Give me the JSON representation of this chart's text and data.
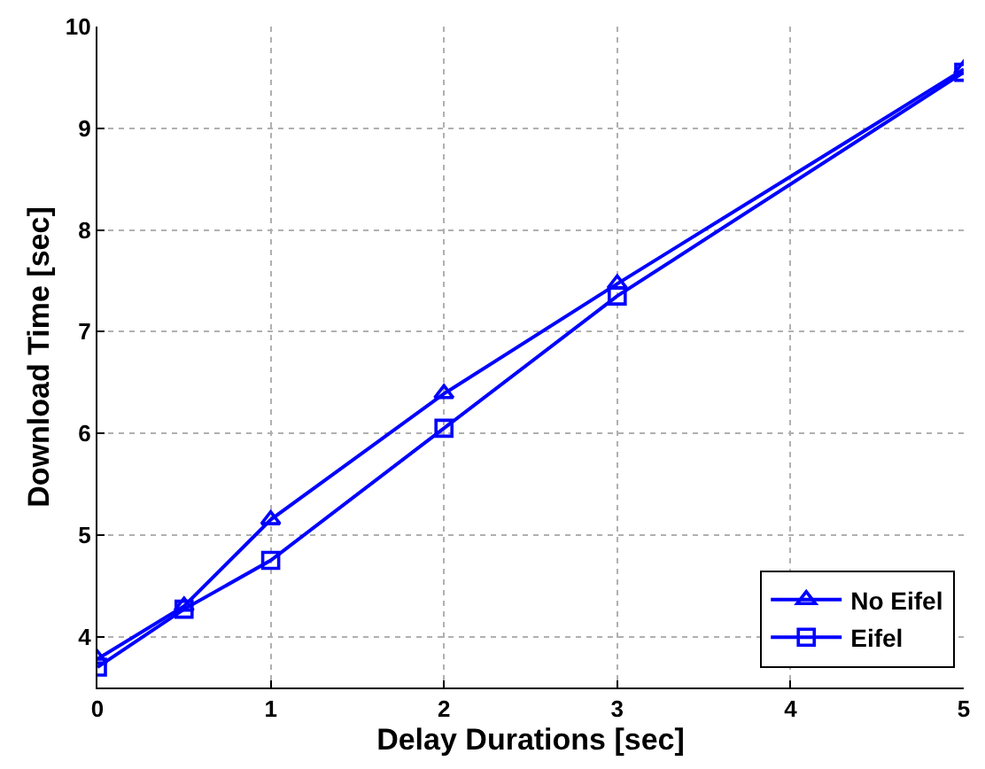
{
  "chart_data": {
    "type": "line",
    "xlabel": "Delay Durations [sec]",
    "ylabel": "Download Time [sec]",
    "x": [
      0,
      0.5,
      1,
      2,
      3,
      5
    ],
    "series": [
      {
        "name": "No Eifel",
        "color": "#0000ff",
        "marker": "triangle",
        "values": [
          3.78,
          4.3,
          5.15,
          6.39,
          7.47,
          9.58
        ]
      },
      {
        "name": "Eifel",
        "color": "#0000ff",
        "marker": "square",
        "values": [
          3.7,
          4.27,
          4.75,
          6.05,
          7.35,
          9.55
        ]
      }
    ],
    "xlim": [
      0,
      5
    ],
    "xticks": [
      0,
      1,
      2,
      3,
      4,
      5
    ],
    "ylim": [
      3.5,
      10
    ],
    "yticks": [
      4,
      5,
      6,
      7,
      8,
      9,
      10
    ],
    "grid": true,
    "legend": "bottom right",
    "line_style": "solid"
  }
}
